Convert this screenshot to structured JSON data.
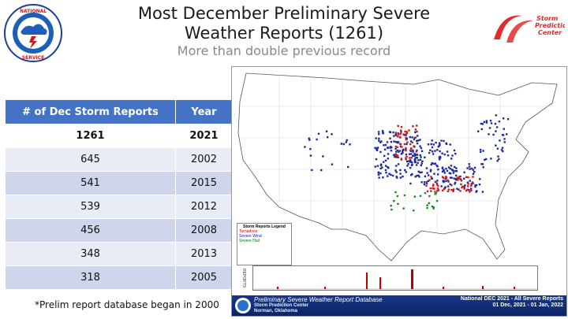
{
  "title_line1": "Most December Preliminary Severe",
  "title_line2": "Weather Reports (1261)",
  "subtitle": "More than double previous record",
  "table": {
    "headers": [
      "# of Dec Storm Reports",
      "Year"
    ],
    "rows": [
      {
        "reports": "1261",
        "year": "2021"
      },
      {
        "reports": "645",
        "year": "2002"
      },
      {
        "reports": "541",
        "year": "2015"
      },
      {
        "reports": "539",
        "year": "2012"
      },
      {
        "reports": "456",
        "year": "2008"
      },
      {
        "reports": "348",
        "year": "2013"
      },
      {
        "reports": "318",
        "year": "2005"
      }
    ]
  },
  "footnote": "*Prelim report database began in 2000",
  "logos": {
    "nws_text": "NATIONAL WEATHER SERVICE",
    "spc_text": "Storm Prediction Center"
  },
  "map": {
    "legend_title": "Storm Reports Legend",
    "legend_tornado": "Tornadoes",
    "legend_wind": "Severe Wind",
    "legend_hail": "Severe Hail",
    "banner_title": "Preliminary Severe Weather Report Database",
    "banner_org1": "Storm Prediction Center",
    "banner_org2": "Norman, Oklahoma",
    "banner_right1": "National DEC 2021 - All Severe Reports",
    "banner_right2": "01 Dec, 2021 - 01 Jan, 2022",
    "histo_label": "REPORTS"
  },
  "colors": {
    "header_blue": "#4472c4",
    "row_odd": "#cfd5ea",
    "row_even": "#e9ebf5",
    "tornado_red": "#d11a1a",
    "wind_blue": "#1c2a9c",
    "hail_green": "#1a8a1a",
    "spc_red": "#e22b2b"
  }
}
